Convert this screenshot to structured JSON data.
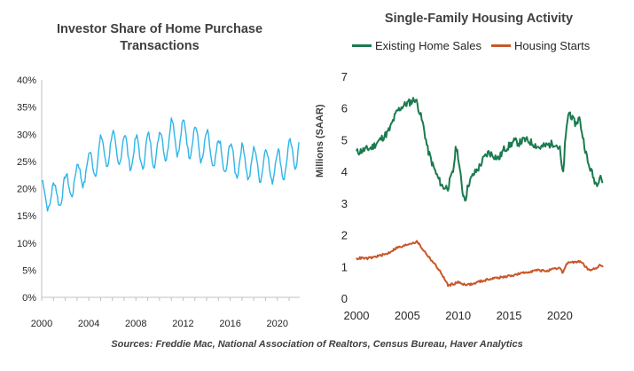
{
  "chart_data": [
    {
      "type": "line",
      "title": "Investor Share of Home Purchase Transactions",
      "title_line1": "Investor Share of Home Purchase",
      "title_line2": "Transactions",
      "xlabel": "",
      "ylabel": "",
      "xlim": [
        2000,
        2021.9
      ],
      "ylim": [
        0,
        40
      ],
      "x_ticks": [
        "2000",
        "2004",
        "2008",
        "2012",
        "2016",
        "2020"
      ],
      "x_tick_values": [
        2000,
        2004,
        2008,
        2012,
        2016,
        2020
      ],
      "y_ticks": [
        "0%",
        "5%",
        "10%",
        "15%",
        "20%",
        "25%",
        "30%",
        "35%",
        "40%"
      ],
      "y_tick_values": [
        0,
        5,
        10,
        15,
        20,
        25,
        30,
        35,
        40
      ],
      "color": "#2eb5e8",
      "series": [
        {
          "name": "Investor share",
          "trend_years": [
            2000,
            2001,
            2002,
            2003,
            2004,
            2005,
            2006,
            2007,
            2008,
            2009,
            2010,
            2011,
            2012,
            2013,
            2014,
            2015,
            2016,
            2017,
            2018,
            2019,
            2020,
            2021,
            2021.9
          ],
          "trend_values": [
            19,
            18.5,
            20,
            22,
            24,
            26.5,
            27.5,
            27,
            26.5,
            27,
            27.5,
            29.5,
            29.5,
            28.5,
            27.5,
            26,
            25.5,
            25,
            24.5,
            24.5,
            24,
            25.5,
            28
          ],
          "seasonal_amplitude": [
            2.5,
            2.5,
            2.5,
            2.5,
            2.5,
            3,
            3,
            3,
            3,
            3,
            3,
            3.5,
            3,
            3,
            3,
            3,
            3,
            3,
            3,
            3,
            3,
            3,
            3
          ],
          "peak": 33.8,
          "end_value": 30
        }
      ]
    },
    {
      "type": "line",
      "title": "Single-Family Housing Activity",
      "xlabel": "",
      "ylabel": "Millions (SAAR)",
      "xlim": [
        2000,
        2024.5
      ],
      "ylim": [
        0,
        7
      ],
      "x_ticks": [
        "2000",
        "2005",
        "2010",
        "2015",
        "2020"
      ],
      "x_tick_values": [
        2000,
        2005,
        2010,
        2015,
        2020
      ],
      "y_ticks": [
        "0",
        "1",
        "2",
        "3",
        "4",
        "5",
        "6",
        "7"
      ],
      "y_tick_values": [
        0,
        1,
        2,
        3,
        4,
        5,
        6,
        7
      ],
      "legend": [
        "Existing Home Sales",
        "Housing Starts"
      ],
      "series": [
        {
          "name": "Existing Home Sales",
          "color": "#1b7a4e",
          "x": [
            2000,
            2000.5,
            2001,
            2001.5,
            2002,
            2002.5,
            2003,
            2003.3,
            2003.6,
            2004,
            2004.5,
            2005,
            2005.4,
            2005.8,
            2006.2,
            2006.6,
            2007,
            2007.5,
            2008,
            2008.5,
            2009,
            2009.5,
            2009.8,
            2010,
            2010.4,
            2010.7,
            2011,
            2011.5,
            2012,
            2012.5,
            2013,
            2013.5,
            2014,
            2014.5,
            2015,
            2015.5,
            2016,
            2016.5,
            2017,
            2017.5,
            2018,
            2018.5,
            2019,
            2019.5,
            2020,
            2020.3,
            2020.5,
            2020.8,
            2021,
            2021.3,
            2021.6,
            2021.9,
            2022.2,
            2022.5,
            2022.8,
            2023,
            2023.3,
            2023.6,
            2024,
            2024.3
          ],
          "values": [
            4.6,
            4.65,
            4.7,
            4.75,
            4.9,
            5.05,
            5.2,
            5.35,
            5.6,
            5.9,
            6.05,
            6.15,
            6.2,
            6.3,
            5.9,
            5.4,
            4.7,
            4.2,
            3.8,
            3.5,
            3.5,
            4.0,
            4.8,
            4.5,
            3.4,
            3.1,
            3.6,
            3.9,
            4.1,
            4.4,
            4.6,
            4.5,
            4.4,
            4.7,
            4.8,
            4.95,
            4.9,
            5.0,
            4.95,
            4.85,
            4.75,
            4.8,
            4.85,
            4.9,
            4.7,
            3.8,
            4.8,
            5.8,
            5.85,
            5.6,
            5.5,
            5.7,
            5.2,
            4.7,
            4.2,
            4.1,
            3.8,
            3.6,
            3.9,
            3.5
          ]
        },
        {
          "name": "Housing Starts",
          "color": "#c8572a",
          "x": [
            2000,
            2000.5,
            2001,
            2001.5,
            2002,
            2002.5,
            2003,
            2003.5,
            2004,
            2004.5,
            2005,
            2005.5,
            2006,
            2006.5,
            2007,
            2007.5,
            2008,
            2008.5,
            2009,
            2009.5,
            2010,
            2010.5,
            2011,
            2011.5,
            2012,
            2012.5,
            2013,
            2013.5,
            2014,
            2014.5,
            2015,
            2015.5,
            2016,
            2016.5,
            2017,
            2017.5,
            2018,
            2018.5,
            2019,
            2019.5,
            2020,
            2020.3,
            2020.6,
            2021,
            2021.5,
            2022,
            2022.5,
            2023,
            2023.5,
            2024,
            2024.3
          ],
          "values": [
            1.25,
            1.27,
            1.25,
            1.28,
            1.32,
            1.36,
            1.4,
            1.5,
            1.6,
            1.62,
            1.7,
            1.75,
            1.78,
            1.55,
            1.35,
            1.15,
            0.95,
            0.7,
            0.4,
            0.45,
            0.5,
            0.45,
            0.43,
            0.45,
            0.52,
            0.55,
            0.6,
            0.63,
            0.65,
            0.67,
            0.7,
            0.73,
            0.77,
            0.8,
            0.84,
            0.87,
            0.88,
            0.86,
            0.88,
            0.92,
            0.95,
            0.8,
            1.05,
            1.15,
            1.12,
            1.18,
            1.0,
            0.85,
            0.95,
            1.05,
            0.98
          ]
        }
      ]
    }
  ],
  "source": "Sources: Freddie Mac, National Association of Realtors, Census Bureau, Haver Analytics"
}
